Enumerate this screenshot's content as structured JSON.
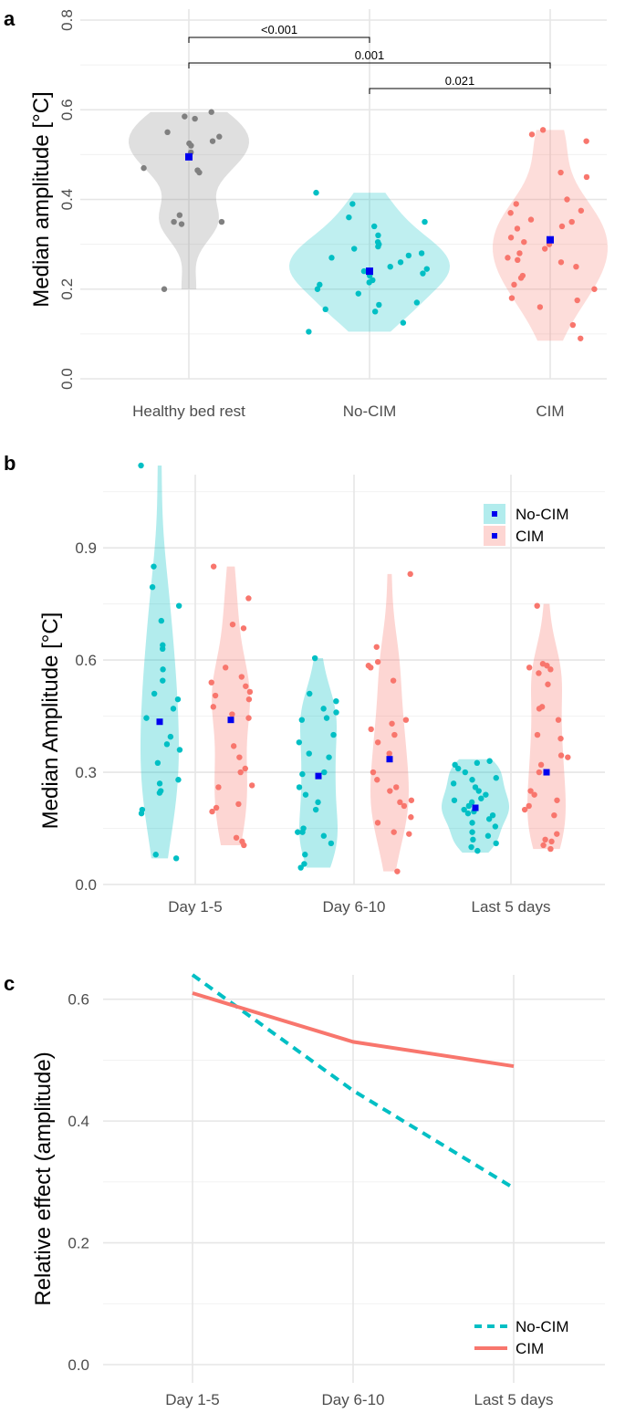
{
  "colors": {
    "healthy": "#808080",
    "nocim": "#00bfc4",
    "cim": "#f8766d",
    "mean_marker": "#0000ee"
  },
  "chart_data": [
    {
      "panel": "a",
      "type": "violin",
      "ylabel": "Median amplitude [°C]",
      "ylim": [
        0,
        0.8
      ],
      "yticks": [
        "0.0",
        "0.2",
        "0.4",
        "0.6",
        "0.8"
      ],
      "categories": [
        "Healthy bed rest",
        "No-CIM",
        "CIM"
      ],
      "groups": [
        {
          "name": "Healthy bed rest",
          "color_key": "healthy",
          "range": [
            0.2,
            0.595
          ],
          "mean": 0.495,
          "points": [
            0.595,
            0.58,
            0.585,
            0.55,
            0.54,
            0.53,
            0.525,
            0.52,
            0.505,
            0.47,
            0.465,
            0.46,
            0.365,
            0.35,
            0.35,
            0.345,
            0.2
          ]
        },
        {
          "name": "No-CIM",
          "color_key": "nocim",
          "range": [
            0.105,
            0.415
          ],
          "mean": 0.24,
          "points": [
            0.415,
            0.39,
            0.36,
            0.35,
            0.34,
            0.32,
            0.305,
            0.3,
            0.295,
            0.29,
            0.28,
            0.275,
            0.27,
            0.26,
            0.25,
            0.245,
            0.24,
            0.235,
            0.23,
            0.22,
            0.215,
            0.21,
            0.2,
            0.19,
            0.17,
            0.165,
            0.155,
            0.15,
            0.125,
            0.105
          ]
        },
        {
          "name": "CIM",
          "color_key": "cim",
          "range": [
            0.085,
            0.555
          ],
          "mean": 0.31,
          "points": [
            0.555,
            0.545,
            0.53,
            0.46,
            0.45,
            0.4,
            0.39,
            0.375,
            0.37,
            0.355,
            0.35,
            0.34,
            0.335,
            0.315,
            0.305,
            0.3,
            0.29,
            0.28,
            0.27,
            0.265,
            0.26,
            0.25,
            0.23,
            0.225,
            0.21,
            0.2,
            0.18,
            0.175,
            0.16,
            0.12,
            0.09
          ]
        }
      ],
      "significance": [
        {
          "from": "Healthy bed rest",
          "to": "No-CIM",
          "label": "<0.001"
        },
        {
          "from": "Healthy bed rest",
          "to": "CIM",
          "label": "0.001"
        },
        {
          "from": "No-CIM",
          "to": "CIM",
          "label": "0.021"
        }
      ]
    },
    {
      "panel": "b",
      "type": "violin",
      "ylabel": "Median Amplitude [°C]",
      "ylim": [
        0,
        1.12
      ],
      "yticks": [
        "0.0",
        "0.3",
        "0.6",
        "0.9"
      ],
      "categories": [
        "Day 1-5",
        "Day 6-10",
        "Last 5 days"
      ],
      "legend": [
        "No-CIM",
        "CIM"
      ],
      "series": [
        {
          "name": "No-CIM",
          "color_key": "nocim",
          "groups": [
            {
              "category": "Day 1-5",
              "range": [
                0.07,
                1.12
              ],
              "mean": 0.435,
              "points": [
                1.12,
                0.85,
                0.795,
                0.745,
                0.705,
                0.64,
                0.63,
                0.575,
                0.545,
                0.51,
                0.495,
                0.47,
                0.445,
                0.395,
                0.375,
                0.36,
                0.325,
                0.28,
                0.27,
                0.25,
                0.245,
                0.2,
                0.19,
                0.08,
                0.07
              ]
            },
            {
              "category": "Day 6-10",
              "range": [
                0.045,
                0.605
              ],
              "mean": 0.29,
              "points": [
                0.605,
                0.51,
                0.49,
                0.47,
                0.46,
                0.445,
                0.44,
                0.4,
                0.38,
                0.35,
                0.34,
                0.3,
                0.295,
                0.26,
                0.24,
                0.22,
                0.2,
                0.15,
                0.14,
                0.14,
                0.13,
                0.11,
                0.08,
                0.055,
                0.045
              ]
            },
            {
              "category": "Last 5 days",
              "range": [
                0.085,
                0.335
              ],
              "mean": 0.205,
              "points": [
                0.33,
                0.325,
                0.32,
                0.31,
                0.3,
                0.285,
                0.28,
                0.27,
                0.26,
                0.25,
                0.24,
                0.23,
                0.225,
                0.22,
                0.21,
                0.2,
                0.195,
                0.19,
                0.185,
                0.175,
                0.165,
                0.155,
                0.14,
                0.13,
                0.12,
                0.11,
                0.1,
                0.09
              ]
            }
          ]
        },
        {
          "name": "CIM",
          "color_key": "cim",
          "groups": [
            {
              "category": "Day 1-5",
              "range": [
                0.105,
                0.85
              ],
              "mean": 0.44,
              "points": [
                0.85,
                0.765,
                0.695,
                0.685,
                0.58,
                0.555,
                0.54,
                0.53,
                0.515,
                0.505,
                0.495,
                0.475,
                0.455,
                0.445,
                0.37,
                0.34,
                0.31,
                0.3,
                0.265,
                0.26,
                0.215,
                0.205,
                0.195,
                0.125,
                0.115,
                0.105
              ]
            },
            {
              "category": "Day 6-10",
              "range": [
                0.035,
                0.83
              ],
              "mean": 0.335,
              "points": [
                0.83,
                0.635,
                0.595,
                0.585,
                0.58,
                0.545,
                0.44,
                0.43,
                0.415,
                0.4,
                0.38,
                0.35,
                0.3,
                0.28,
                0.26,
                0.25,
                0.225,
                0.22,
                0.21,
                0.18,
                0.165,
                0.14,
                0.135,
                0.035
              ]
            },
            {
              "category": "Last 5 days",
              "range": [
                0.095,
                0.75
              ],
              "mean": 0.3,
              "points": [
                0.745,
                0.59,
                0.585,
                0.58,
                0.575,
                0.565,
                0.535,
                0.475,
                0.47,
                0.44,
                0.4,
                0.39,
                0.345,
                0.34,
                0.32,
                0.3,
                0.25,
                0.24,
                0.225,
                0.21,
                0.2,
                0.185,
                0.135,
                0.12,
                0.115,
                0.105,
                0.095
              ]
            }
          ]
        }
      ]
    },
    {
      "panel": "c",
      "type": "line",
      "ylabel": "Relative effect (amplitude)",
      "ylim": [
        0,
        0.64
      ],
      "yticks": [
        "0.0",
        "0.2",
        "0.4",
        "0.6"
      ],
      "categories": [
        "Day 1-5",
        "Day 6-10",
        "Last 5 days"
      ],
      "legend": [
        "No-CIM",
        "CIM"
      ],
      "series": [
        {
          "name": "No-CIM",
          "color_key": "nocim",
          "dashed": true,
          "values": [
            0.64,
            0.45,
            0.29
          ]
        },
        {
          "name": "CIM",
          "color_key": "cim",
          "dashed": false,
          "values": [
            0.61,
            0.53,
            0.49
          ]
        }
      ]
    }
  ]
}
